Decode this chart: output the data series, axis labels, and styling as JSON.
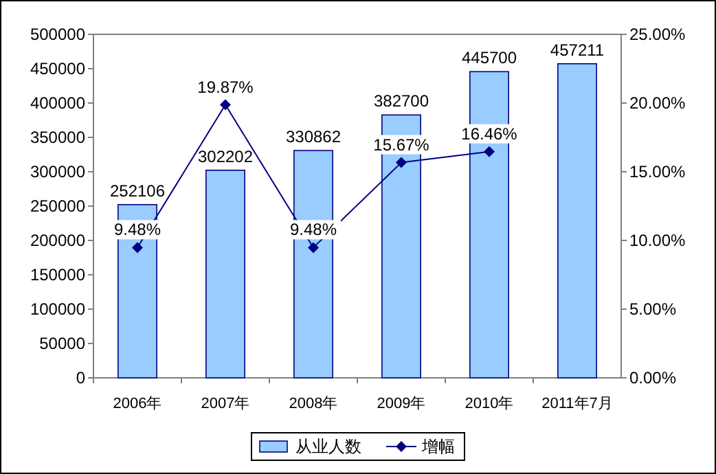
{
  "chart_data": {
    "type": "bar",
    "categories": [
      "2006年",
      "2007年",
      "2008年",
      "2009年",
      "2010年",
      "2011年7月"
    ],
    "series": [
      {
        "name": "从业人数",
        "color": "#99ccff",
        "values": [
          252106,
          302202,
          330862,
          382700,
          445700,
          457211
        ]
      },
      {
        "name": "增幅",
        "type": "line",
        "axis": "y2",
        "color": "#000080",
        "values": [
          9.48,
          19.87,
          9.48,
          15.67,
          16.46,
          null
        ],
        "value_labels": [
          "9.48%",
          "19.87%",
          "9.48%",
          "15.67%",
          "16.46%",
          null
        ]
      }
    ],
    "ylim": [
      0,
      500000
    ],
    "yticks": [
      0,
      50000,
      100000,
      150000,
      200000,
      250000,
      300000,
      350000,
      400000,
      450000,
      500000
    ],
    "y2lim": [
      0,
      25
    ],
    "y2ticks": [
      {
        "value": 0,
        "label": "0.00%"
      },
      {
        "value": 5,
        "label": "5.00%"
      },
      {
        "value": 10,
        "label": "10.00%"
      },
      {
        "value": 15,
        "label": "15.00%"
      },
      {
        "value": 20,
        "label": "20.00%"
      },
      {
        "value": 25,
        "label": "25.00%"
      }
    ],
    "data_labels": true,
    "legend": "bottom",
    "marker": "diamond",
    "grid": false
  }
}
